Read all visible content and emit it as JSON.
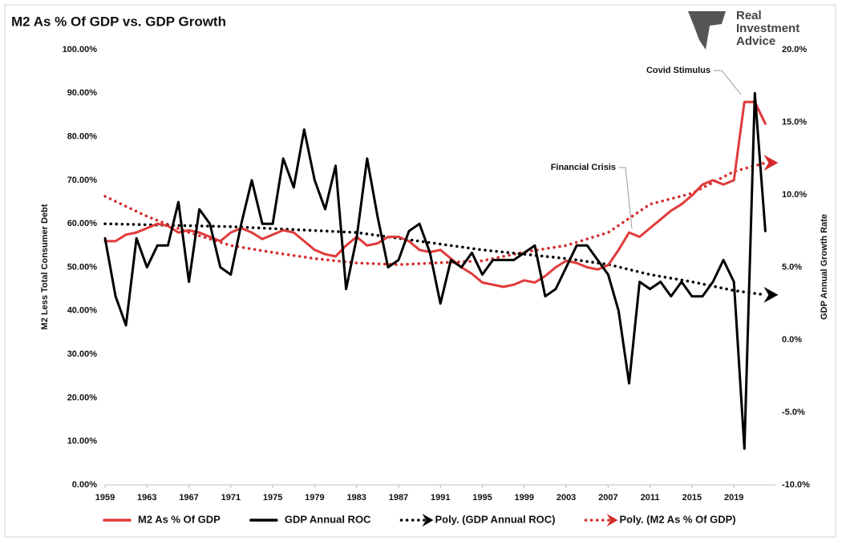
{
  "chart_data": {
    "type": "line",
    "title": "M2 As % Of GDP vs. GDP Growth",
    "logo": [
      "Real",
      "Investment",
      "Advice"
    ],
    "y_label": "M2 Less Total Consumer Debt",
    "y2_label": "GDP Annual Growth Rate",
    "annotations": [
      "Covid Stimulus",
      "Financial Crisis"
    ],
    "x": [
      1959,
      1960,
      1961,
      1962,
      1963,
      1964,
      1965,
      1966,
      1967,
      1968,
      1969,
      1970,
      1971,
      1972,
      1973,
      1974,
      1975,
      1976,
      1977,
      1978,
      1979,
      1980,
      1981,
      1982,
      1983,
      1984,
      1985,
      1986,
      1987,
      1988,
      1989,
      1990,
      1991,
      1992,
      1993,
      1994,
      1995,
      1996,
      1997,
      1998,
      1999,
      2000,
      2001,
      2002,
      2003,
      2004,
      2005,
      2006,
      2007,
      2008,
      2009,
      2010,
      2011,
      2012,
      2013,
      2014,
      2015,
      2016,
      2017,
      2018,
      2019,
      2020,
      2021,
      2022
    ],
    "xlim": [
      1959,
      2023
    ],
    "xticks": [
      1959,
      1963,
      1967,
      1971,
      1975,
      1979,
      1983,
      1987,
      1991,
      1995,
      1999,
      2003,
      2007,
      2011,
      2015,
      2019
    ],
    "ylim": [
      0,
      100
    ],
    "yticks": [
      {
        "value": 0,
        "label": "0.00%"
      },
      {
        "value": 10,
        "label": "10.00%"
      },
      {
        "value": 20,
        "label": "20.00%"
      },
      {
        "value": 30,
        "label": "30.00%"
      },
      {
        "value": 40,
        "label": "40.00%"
      },
      {
        "value": 50,
        "label": "50.00%"
      },
      {
        "value": 60,
        "label": "60.00%"
      },
      {
        "value": 70,
        "label": "70.00%"
      },
      {
        "value": 80,
        "label": "80.00%"
      },
      {
        "value": 90,
        "label": "90.00%"
      },
      {
        "value": 100,
        "label": "100.00%"
      }
    ],
    "y2lim": [
      -10,
      20
    ],
    "y2ticks": [
      {
        "value": -10,
        "label": "-10.0%"
      },
      {
        "value": -5,
        "label": "-5.0%"
      },
      {
        "value": 0,
        "label": "0.0%"
      },
      {
        "value": 5,
        "label": "5.0%"
      },
      {
        "value": 10,
        "label": "10.0%"
      },
      {
        "value": 15,
        "label": "15.0%"
      },
      {
        "value": 20,
        "label": "20.0%"
      }
    ],
    "series": [
      {
        "name": "M2 As % Of GDP",
        "color": "#e03a3a",
        "style": "solid",
        "values": [
          56,
          56,
          57.5,
          58,
          59,
          60,
          59.5,
          58,
          58.5,
          58,
          57,
          56,
          58,
          59,
          58,
          56.5,
          57.5,
          58.5,
          58,
          56,
          54,
          53,
          52.5,
          55,
          57,
          55,
          55.5,
          57,
          57,
          56,
          54,
          53.5,
          54,
          52,
          50,
          48.5,
          46.5,
          46,
          45.5,
          46,
          47,
          46.5,
          48,
          50,
          51.5,
          51,
          50,
          49.5,
          50.5,
          54,
          58,
          57,
          59,
          61,
          63,
          64.5,
          66.5,
          69,
          70,
          69,
          70,
          88,
          88,
          83
        ]
      },
      {
        "name": "GDP Annual ROC",
        "color": "#000000",
        "style": "solid",
        "axis": "y2",
        "values": [
          7,
          3,
          1,
          7,
          5,
          6.5,
          6.5,
          9.5,
          4,
          9,
          8,
          5,
          4.5,
          8,
          11,
          8,
          8,
          12.5,
          10.5,
          14.5,
          11,
          9,
          12,
          3.5,
          7,
          12.5,
          8.5,
          5,
          5.5,
          7.5,
          8,
          6,
          2.5,
          5.5,
          5,
          6,
          4.5,
          5.5,
          5.5,
          5.5,
          6,
          6.5,
          3,
          3.5,
          5,
          6.5,
          6.5,
          5.5,
          4.5,
          2,
          -3,
          4,
          3.5,
          4,
          3,
          4,
          3,
          3,
          4,
          5.5,
          4,
          -7.5,
          17,
          7.5
        ]
      },
      {
        "name": "Poly. (GDP Annual ROC)",
        "color": "#000000",
        "style": "dotted",
        "axis": "y2",
        "x": [
          1959,
          1971,
          1983,
          1995,
          2003,
          2007,
          2011,
          2015,
          2019,
          2022
        ],
        "values": [
          8,
          7.8,
          7.4,
          6.2,
          5.6,
          5.2,
          4.5,
          4,
          3.4,
          3.1
        ]
      },
      {
        "name": "Poly. (M2 As % Of GDP)",
        "color": "#d42a2a",
        "style": "dotted",
        "x": [
          1959,
          1963,
          1967,
          1971,
          1975,
          1979,
          1983,
          1987,
          1995,
          1999,
          2003,
          2007,
          2011,
          2015,
          2019,
          2022
        ],
        "values": [
          66.3,
          61.7,
          58,
          55,
          53.4,
          52,
          51,
          50.6,
          51.5,
          53.5,
          55,
          58,
          64.5,
          67,
          72,
          74
        ]
      }
    ]
  }
}
